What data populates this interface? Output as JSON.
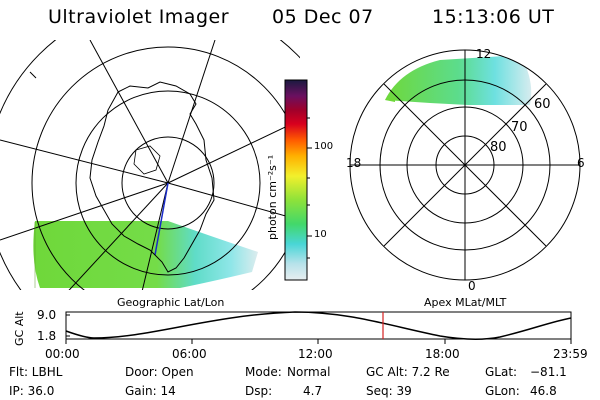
{
  "header": {
    "instrument": "Ultraviolet Imager",
    "date": "05 Dec 07",
    "time": "15:13:06 UT"
  },
  "left_map": {
    "caption": "Geographic Lat/Lon"
  },
  "right_map": {
    "caption": "Apex MLat/MLT",
    "mlt_labels": {
      "top": "12",
      "bottom": "0",
      "left": "18",
      "right": "6"
    },
    "lat_labels": [
      "60",
      "70",
      "80"
    ]
  },
  "colorbar": {
    "unit": "photon cm⁻²s⁻¹",
    "ticks": [
      "100",
      "10"
    ],
    "scale": "log"
  },
  "altitude_plot": {
    "ylabel": "GC Alt",
    "yticks": [
      "9.0",
      "1.8"
    ],
    "xticks": [
      "00:00",
      "06:00",
      "12:00",
      "18:00",
      "23:59"
    ],
    "marker_time": "15:13",
    "marker_color": "#d62020"
  },
  "footer": {
    "filter": "Flt: LBHL",
    "ip": "IP: 36.0",
    "door": "Door: Open",
    "gain": "Gain: 14",
    "mode_label": "Mode:",
    "mode_value": "Normal",
    "dsp_label": "Dsp:",
    "dsp_value": "4.7",
    "gcalt": "GC Alt: 7.2 Re",
    "seq": "Seq: 39",
    "glat_label": "GLat:",
    "glat_value": "−81.1",
    "glon_label": "GLon:",
    "glon_value": "46.8"
  },
  "colors": {
    "auroral_green": "#6fdc3a",
    "auroral_cyan": "#5fe0e0",
    "auroral_pale": "#d8eef0"
  }
}
